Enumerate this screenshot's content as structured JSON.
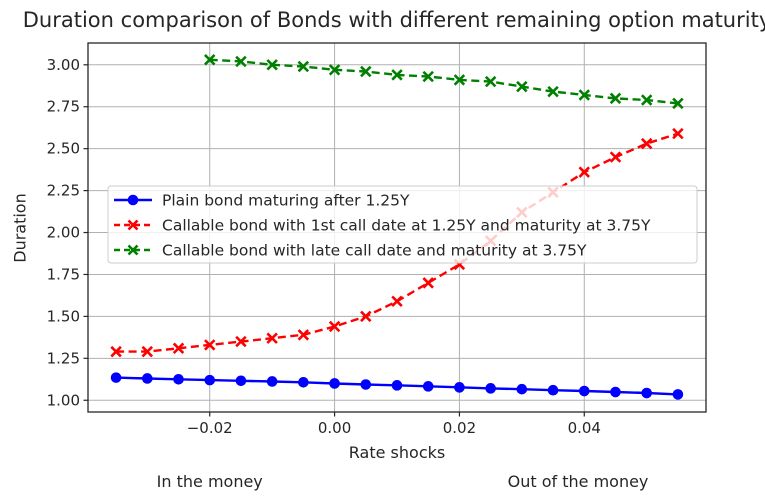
{
  "chart_data": {
    "type": "line",
    "title": "Duration comparison of Bonds with different remaining option maturity",
    "xlabel": "Rate shocks",
    "ylabel": "Duration",
    "xlim": [
      -0.0395,
      0.0595
    ],
    "ylim": [
      0.93,
      3.13
    ],
    "x_ticks": [
      -0.02,
      0.0,
      0.02,
      0.04
    ],
    "x_tick_labels": [
      "−0.02",
      "0.00",
      "0.02",
      "0.04"
    ],
    "y_ticks": [
      1.0,
      1.25,
      1.5,
      1.75,
      2.0,
      2.25,
      2.5,
      2.75,
      3.0
    ],
    "y_tick_labels": [
      "1.00",
      "1.25",
      "1.50",
      "1.75",
      "2.00",
      "2.25",
      "2.50",
      "2.75",
      "3.00"
    ],
    "grid": true,
    "grid_color": "#b0b0b0",
    "spine_color": "#262626",
    "legend_position": "inside center-left",
    "legend_frame_color": "#cccccc",
    "annotations": [
      {
        "text": "In the money",
        "x": -0.02
      },
      {
        "text": "Out of the money",
        "x": 0.039
      }
    ],
    "series": [
      {
        "name": "Plain bond maturing after 1.25Y",
        "color": "#0000ff",
        "linestyle": "solid",
        "marker": "circle",
        "x": [
          -0.035,
          -0.03,
          -0.025,
          -0.02,
          -0.015,
          -0.01,
          -0.005,
          0.0,
          0.005,
          0.01,
          0.015,
          0.02,
          0.025,
          0.03,
          0.035,
          0.04,
          0.045,
          0.05,
          0.055
        ],
        "y": [
          1.135,
          1.13,
          1.125,
          1.12,
          1.116,
          1.112,
          1.107,
          1.1,
          1.094,
          1.089,
          1.083,
          1.077,
          1.071,
          1.066,
          1.06,
          1.055,
          1.049,
          1.043,
          1.035
        ]
      },
      {
        "name": "Callable bond with 1st call date at 1.25Y and maturity at 3.75Y",
        "color": "#ff0000",
        "linestyle": "dashed",
        "marker": "x",
        "x": [
          -0.035,
          -0.03,
          -0.025,
          -0.02,
          -0.015,
          -0.01,
          -0.005,
          0.0,
          0.005,
          0.01,
          0.015,
          0.02,
          0.025,
          0.03,
          0.035,
          0.04,
          0.045,
          0.05,
          0.055
        ],
        "y": [
          1.29,
          1.29,
          1.31,
          1.33,
          1.35,
          1.37,
          1.39,
          1.44,
          1.5,
          1.59,
          1.7,
          1.81,
          1.95,
          2.12,
          2.24,
          2.36,
          2.45,
          2.53,
          2.59
        ]
      },
      {
        "name": "Callable bond with late call date and maturity at 3.75Y",
        "color": "#008000",
        "linestyle": "dashed",
        "marker": "x",
        "x": [
          -0.02,
          -0.015,
          -0.01,
          -0.005,
          0.0,
          0.005,
          0.01,
          0.015,
          0.02,
          0.025,
          0.03,
          0.035,
          0.04,
          0.045,
          0.05,
          0.055
        ],
        "y": [
          3.03,
          3.02,
          3.0,
          2.99,
          2.97,
          2.96,
          2.94,
          2.93,
          2.91,
          2.9,
          2.87,
          2.84,
          2.82,
          2.8,
          2.79,
          2.77
        ]
      }
    ]
  }
}
